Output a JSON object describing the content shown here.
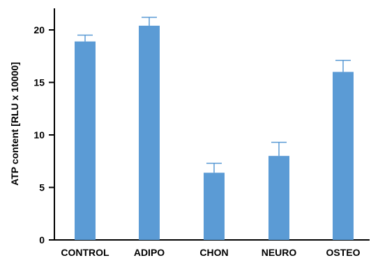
{
  "chart_data": {
    "type": "bar",
    "title": "",
    "xlabel": "",
    "ylabel": "ATP content [RLU x 10000]",
    "categories": [
      "CONTROL",
      "ADIPO",
      "CHON",
      "NEURO",
      "OSTEO"
    ],
    "values": [
      18.9,
      20.4,
      6.4,
      8.0,
      16.0
    ],
    "error_upper": [
      0.6,
      0.8,
      0.9,
      1.3,
      1.1
    ],
    "yticks": [
      0,
      5,
      10,
      15,
      20
    ],
    "ylim": [
      0,
      22
    ],
    "grid": false,
    "legend": "none",
    "bar_color": "#5b9bd5",
    "error_color": "#5b9bd5"
  }
}
